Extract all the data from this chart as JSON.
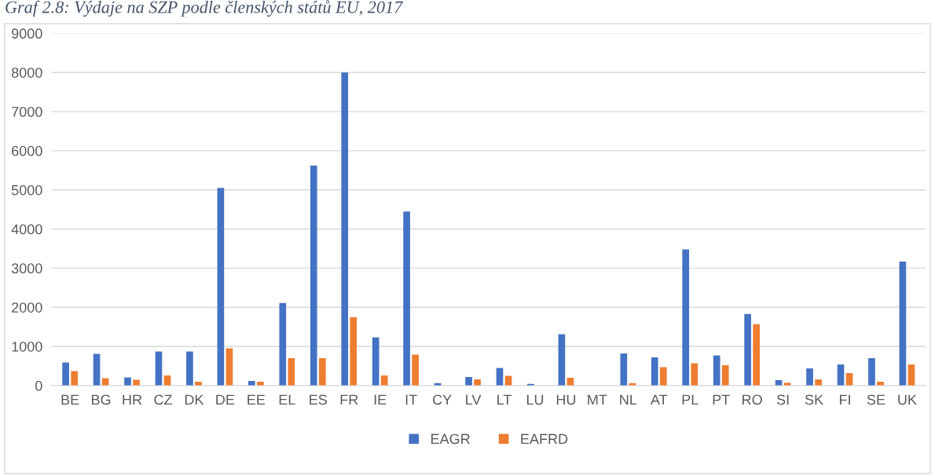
{
  "chart_data": {
    "type": "bar",
    "title": "Graf 2.8: Výdaje na SZP podle členských států EU, 2017",
    "categories": [
      "BE",
      "BG",
      "HR",
      "CZ",
      "DK",
      "DE",
      "EE",
      "EL",
      "ES",
      "FR",
      "IE",
      "IT",
      "CY",
      "LV",
      "LT",
      "LU",
      "HU",
      "MT",
      "NL",
      "AT",
      "PL",
      "PT",
      "RO",
      "SI",
      "SK",
      "FI",
      "SE",
      "UK"
    ],
    "series": [
      {
        "name": "EAGR",
        "color": "#4472c4",
        "values": [
          590,
          810,
          210,
          870,
          870,
          5050,
          120,
          2110,
          5620,
          8000,
          1230,
          4450,
          60,
          220,
          450,
          40,
          1310,
          null,
          820,
          720,
          3480,
          770,
          1830,
          140,
          440,
          540,
          700,
          3170
        ]
      },
      {
        "name": "EAFRD",
        "color": "#ed7d31",
        "values": [
          370,
          190,
          150,
          260,
          100,
          950,
          100,
          700,
          700,
          1750,
          260,
          790,
          0,
          160,
          250,
          null,
          200,
          0,
          60,
          470,
          570,
          520,
          1570,
          70,
          160,
          320,
          100,
          540
        ]
      }
    ],
    "ylim": [
      0,
      9000
    ],
    "yticks": [
      0,
      1000,
      2000,
      3000,
      4000,
      5000,
      6000,
      7000,
      8000,
      9000
    ],
    "grid": "y",
    "legend": "bottom"
  }
}
